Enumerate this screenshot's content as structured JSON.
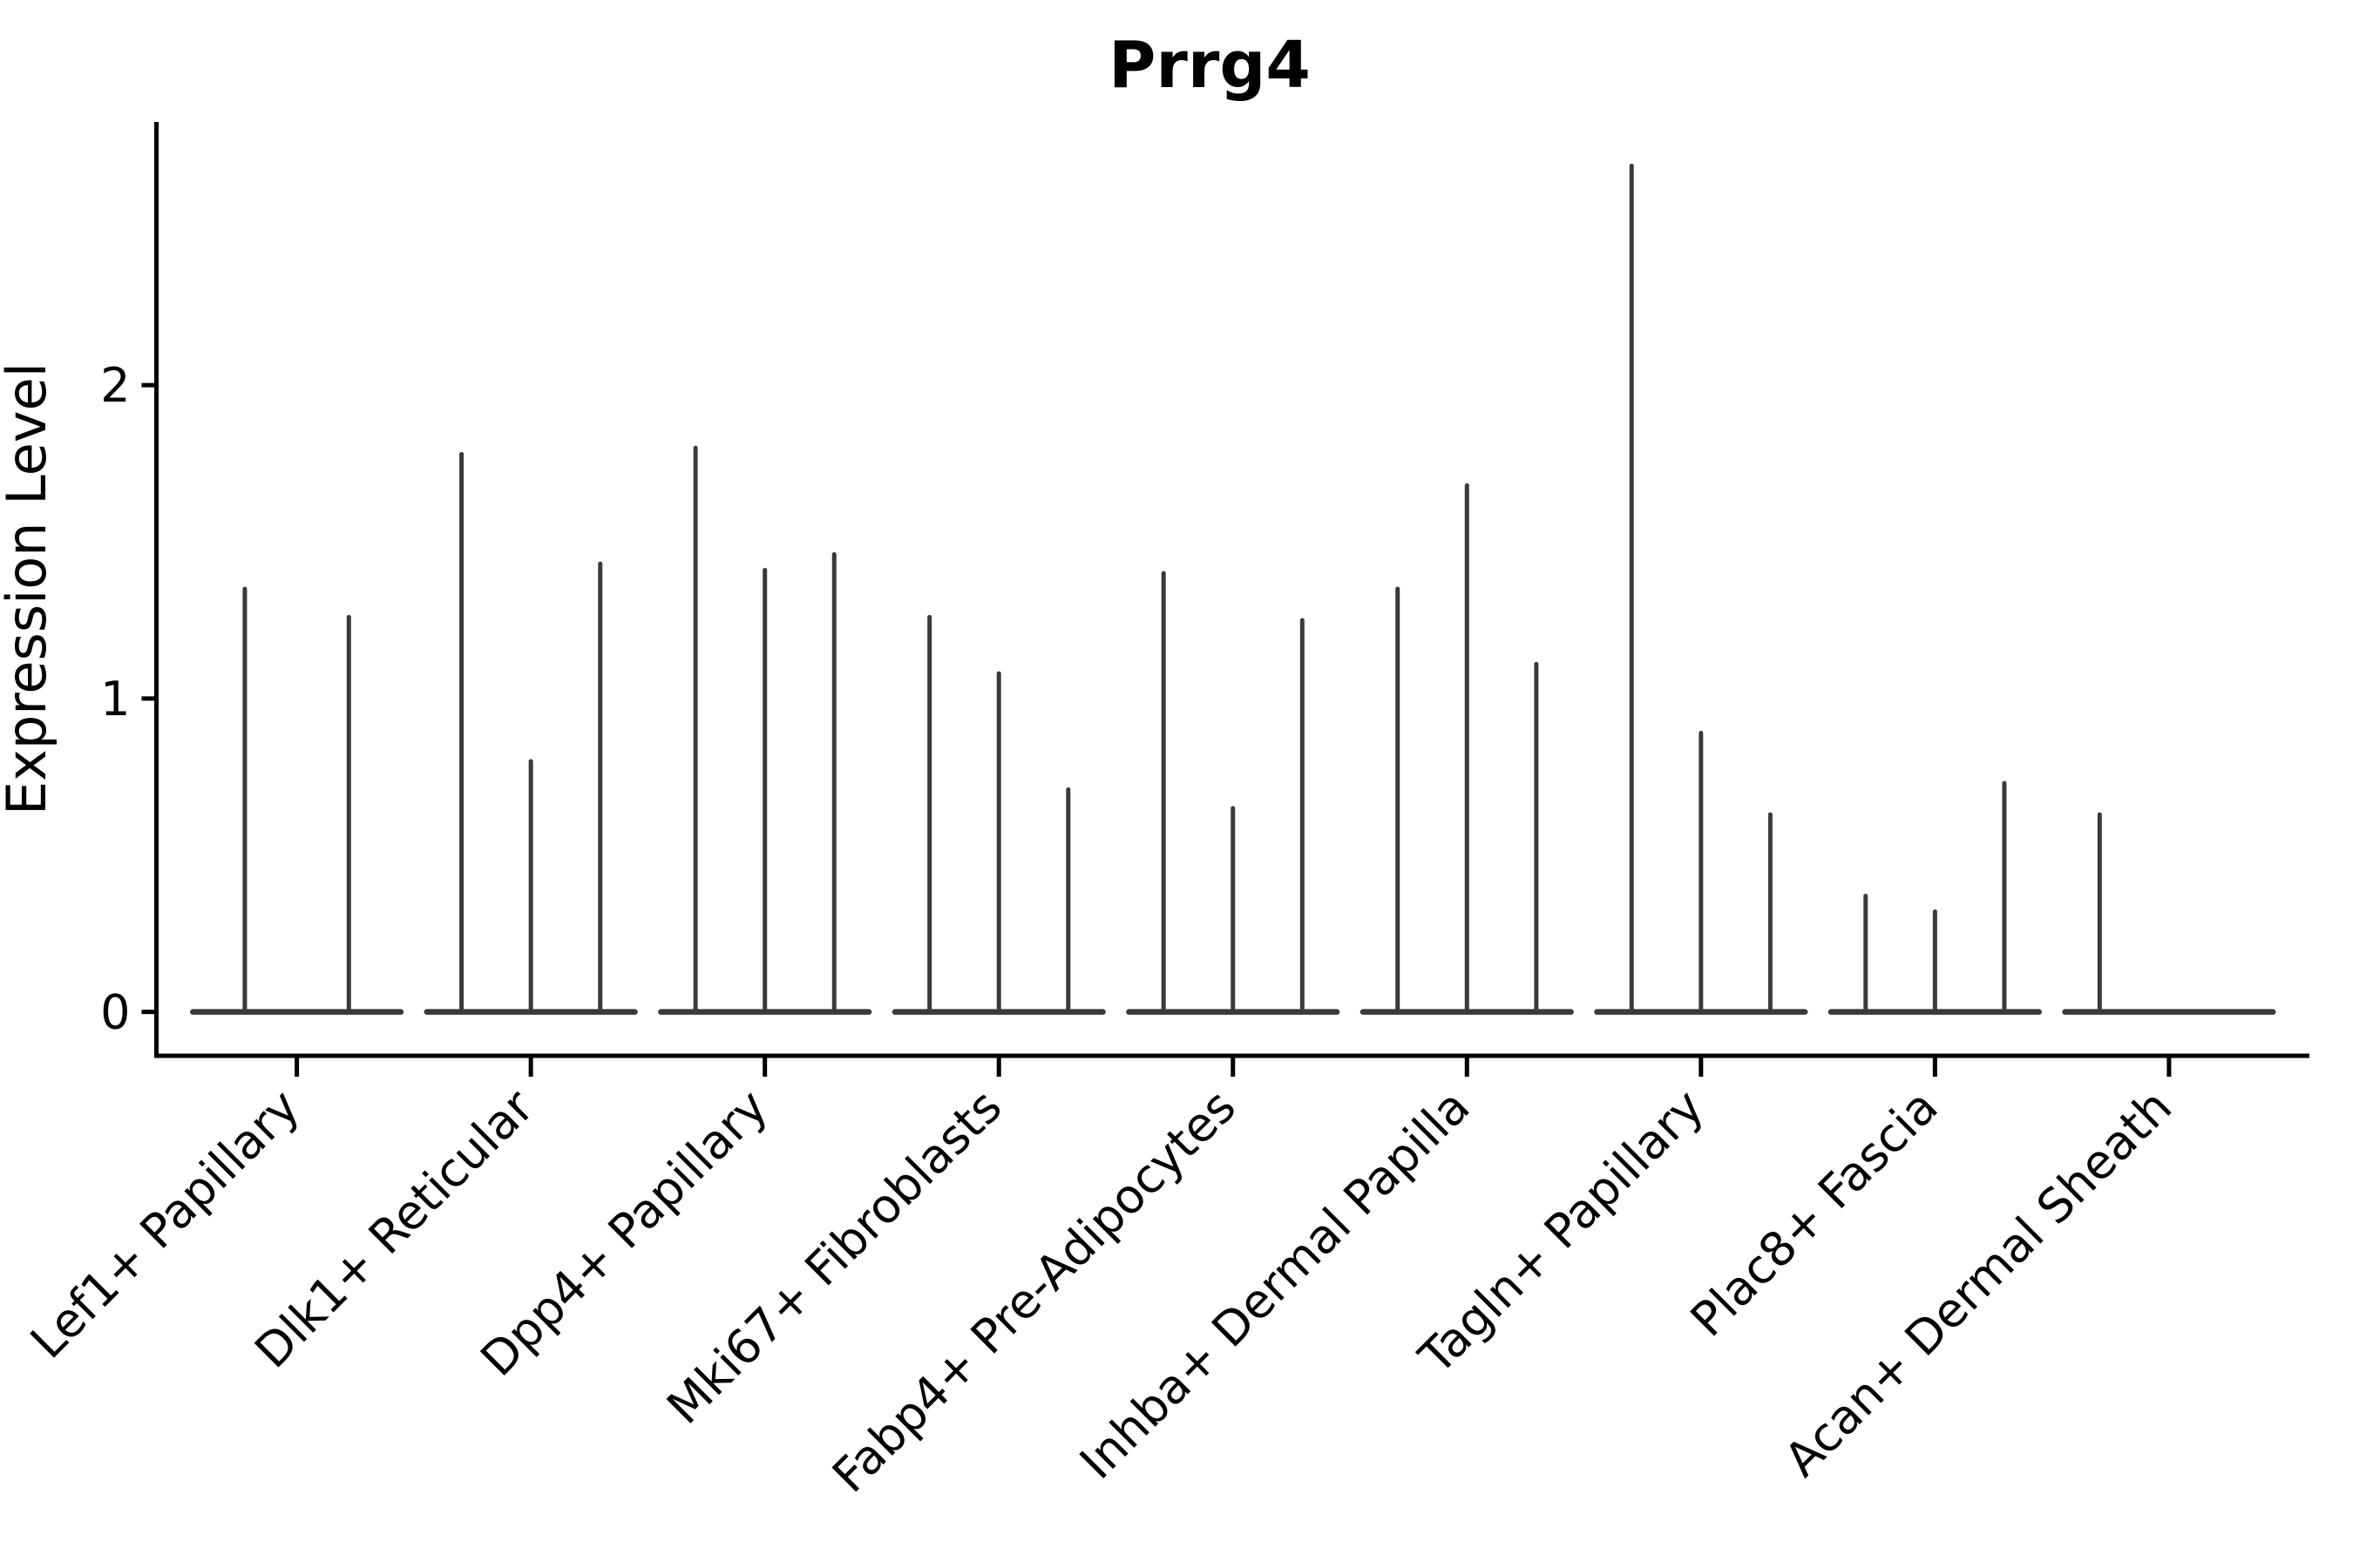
{
  "chart_data": {
    "type": "violin",
    "title": "Prrg4",
    "ylabel": "Expression Level",
    "xlabel": "",
    "yticks": [
      "0",
      "1",
      "2"
    ],
    "ytick_values": [
      0,
      1,
      2
    ],
    "ylim": [
      -0.14,
      2.84
    ],
    "grid": false,
    "legend_position": "none",
    "groups": [
      {
        "label": "Lef1+ Papillary",
        "violin_maxima": [
          1.35,
          1.26
        ]
      },
      {
        "label": "Dlk1+ Reticular",
        "violin_maxima": [
          1.78,
          0.8,
          1.43
        ]
      },
      {
        "label": "Dpp4+ Papillary",
        "violin_maxima": [
          1.8,
          1.41,
          1.46
        ]
      },
      {
        "label": "Mki67+ Fibroblasts",
        "violin_maxima": [
          1.26,
          1.08,
          0.71
        ]
      },
      {
        "label": "Fabp4+ Pre-Adipocytes",
        "violin_maxima": [
          1.4,
          0.65,
          1.25
        ]
      },
      {
        "label": "Inhba+ Dermal Papilla",
        "violin_maxima": [
          1.35,
          1.68,
          1.11
        ]
      },
      {
        "label": "Tagln+ Papillary",
        "violin_maxima": [
          2.7,
          0.89,
          0.63
        ]
      },
      {
        "label": "Plac8+ Fascia",
        "violin_maxima": [
          0.37,
          0.32,
          0.73
        ]
      },
      {
        "label": "Acan+ Dermal Sheath",
        "violin_maxima": [
          0.63,
          0,
          0
        ]
      }
    ],
    "colors": {
      "violin": "#3a3a3a",
      "axis": "#000000",
      "text": "#000000",
      "background": "#ffffff"
    }
  }
}
